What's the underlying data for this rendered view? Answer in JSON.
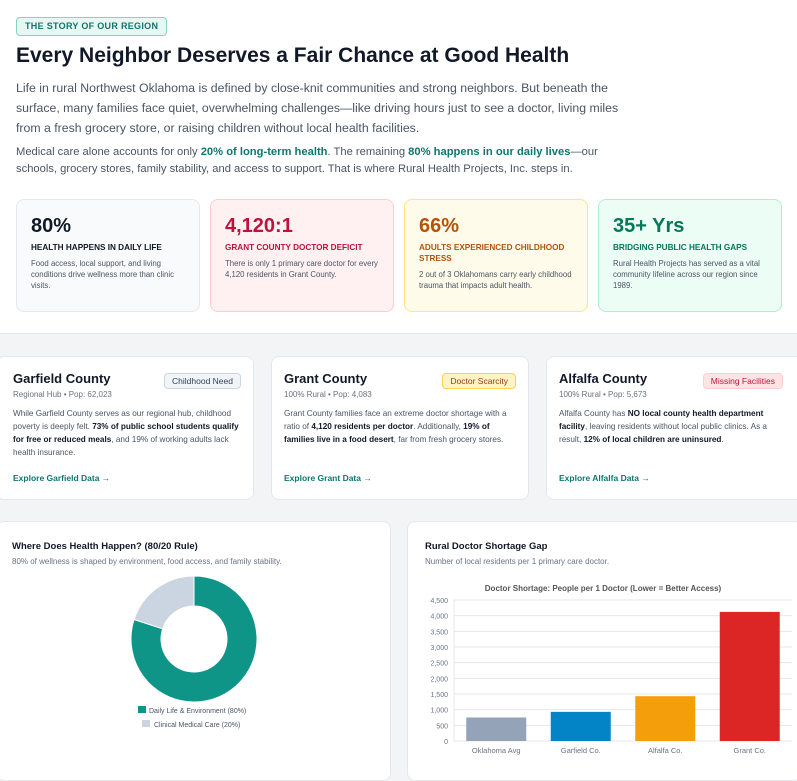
{
  "header": {
    "badge": "THE STORY OF OUR REGION",
    "title": "Every Neighbor Deserves a Fair Chance at Good Health",
    "intro": "Life in rural Northwest Oklahoma is defined by close-knit communities and strong neighbors. But beneath the surface, many families face quiet, overwhelming challenges—like driving hours just to see a doctor, living miles from a fresh grocery store, or raising children without local health facilities.",
    "p2_a": "Medical care alone accounts for only ",
    "p2_hl1": "20% of long-term health",
    "p2_b": ". The remaining ",
    "p2_hl2": "80% happens in our daily lives",
    "p2_c": "—our schools, grocery stores, family stability, and access to support. That is where Rural Health Projects, Inc. steps in."
  },
  "stats": [
    {
      "value": "80%",
      "label": "HEALTH HAPPENS IN DAILY LIFE",
      "desc": "Food access, local support, and living conditions drive wellness more than clinic visits.",
      "color": "#111827",
      "labelColor": "#111827",
      "bg": "#f9fafb",
      "border": "#e5e7eb"
    },
    {
      "value": "4,120:1",
      "label": "GRANT COUNTY DOCTOR DEFICIT",
      "desc": "There is only 1 primary care doctor for every 4,120 residents in Grant County.",
      "color": "#be123c",
      "labelColor": "#be123c",
      "bg": "#fff1f2",
      "border": "#fecdd3"
    },
    {
      "value": "66%",
      "label": "ADULTS EXPERIENCED CHILDHOOD STRESS",
      "desc": "2 out of 3 Oklahomans carry early childhood trauma that impacts adult health.",
      "color": "#b45309",
      "labelColor": "#b45309",
      "bg": "#fffbeb",
      "border": "#fde68a"
    },
    {
      "value": "35+ Yrs",
      "label": "BRIDGING PUBLIC HEALTH GAPS",
      "desc": "Rural Health Projects has served as a vital community lifeline across our region since 1989.",
      "color": "#047857",
      "labelColor": "#047857",
      "bg": "#ecfdf5",
      "border": "#a7f3d0"
    }
  ],
  "counties": [
    {
      "name": "Garfield County",
      "tag": "Childhood Need",
      "tagBg": "#f1f5f9",
      "tagColor": "#334155",
      "tagBorder": "#cbd5e1",
      "meta": "Regional Hub • Pop: 62,023",
      "b1": "While Garfield County serves as our regional hub, childhood poverty is deeply felt. ",
      "b2": "73% of public school students qualify for free or reduced meals",
      "b3": ", and 19% of working adults lack health insurance.",
      "link": "Explore Garfield Data →"
    },
    {
      "name": "Grant County",
      "tag": "Doctor Scarcity",
      "tagBg": "#fef3c7",
      "tagColor": "#92400e",
      "tagBorder": "#fcd34d",
      "meta": "100% Rural • Pop: 4,083",
      "b1": "Grant County families face an extreme doctor shortage with a ratio of ",
      "b2": "4,120 residents per doctor",
      "b3": ". Additionally, ",
      "b4": "19% of families live in a food desert",
      "b5": ", far from fresh grocery stores.",
      "link": "Explore Grant Data →"
    },
    {
      "name": "Alfalfa County",
      "tag": "Missing Facilities",
      "tagBg": "#ffe4e6",
      "tagColor": "#be123c",
      "tagBorder": "#fecdd3",
      "meta": "100% Rural • Pop: 5,673",
      "b1": "Alfalfa County has ",
      "b2": "NO local county health department facility",
      "b3": ", leaving residents without local public clinics. As a result, ",
      "b4": "12% of local children are uninsured",
      "b5": ".",
      "link": "Explore Alfalfa Data →"
    }
  ],
  "donut": {
    "title": "Where Does Health Happen? (80/20 Rule)",
    "subtitle": "80% of wellness is shaped by environment, food access, and family stability."
  },
  "bars": {
    "title": "Rural Doctor Shortage Gap",
    "subtitle": "Number of local residents per 1 primary care doctor."
  },
  "chart_data": [
    {
      "type": "pie",
      "categories": [
        "Daily Life & Environment (80%)",
        "Clinical Medical Care (20%)"
      ],
      "values": [
        80,
        20
      ],
      "colors": [
        "#0f9488",
        "#cbd5e1"
      ],
      "legend": "bottom"
    },
    {
      "type": "bar",
      "title": "Doctor Shortage: People per 1 Doctor (Lower = Better Access)",
      "categories": [
        "Oklahoma Avg",
        "Garfield Co.",
        "Alfalfa Co.",
        "Grant Co."
      ],
      "values": [
        750,
        930,
        1430,
        4120
      ],
      "colors": [
        "#94a3b8",
        "#0284c7",
        "#f59e0b",
        "#dc2626"
      ],
      "ylim": [
        0,
        4500
      ],
      "yticks": [
        "0",
        "500",
        "1,000",
        "1,500",
        "2,000",
        "2,500",
        "3,000",
        "3,500",
        "4,000",
        "4,500"
      ],
      "grid": true
    }
  ]
}
